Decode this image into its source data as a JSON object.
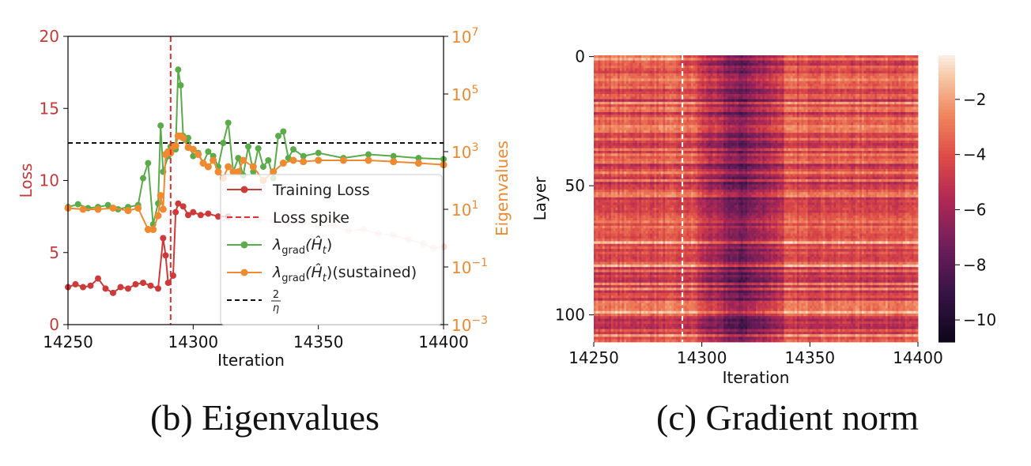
{
  "captions": {
    "left": "(b) Eigenvalues",
    "right": "(c) Gradient norm"
  },
  "colors": {
    "loss": "#cc3a3a",
    "spike": "#e03030",
    "grad": "#5aab4a",
    "sustained": "#f08a30",
    "eta_line": "#111111",
    "eig_axis": "#f08a30",
    "loss_axis": "#c83a3a"
  },
  "chart_data": [
    {
      "type": "line",
      "title": "",
      "xlabel": "Iteration",
      "ylabel_left": "Loss",
      "ylabel_right": "Eigenvalues",
      "xlim": [
        14250,
        14400
      ],
      "ylim_left": [
        0,
        20
      ],
      "ylim_right": [
        0.001,
        10000000
      ],
      "right_scale": "log",
      "xticks": [
        "14250",
        "14300",
        "14350",
        "14400"
      ],
      "yticks_left": [
        "0",
        "5",
        "10",
        "15",
        "20"
      ],
      "yticks_right": [
        {
          "base": "10",
          "exp": "−3",
          "value": 0.001
        },
        {
          "base": "10",
          "exp": "−1",
          "value": 0.1
        },
        {
          "base": "10",
          "exp": "1",
          "value": 10
        },
        {
          "base": "10",
          "exp": "3",
          "value": 1000
        },
        {
          "base": "10",
          "exp": "5",
          "value": 100000
        },
        {
          "base": "10",
          "exp": "7",
          "value": 10000000
        }
      ],
      "spike_x": 14291,
      "eta_threshold": 2000,
      "legend": {
        "position": "lower-right",
        "entries": [
          {
            "key": "loss",
            "text": "Training Loss"
          },
          {
            "key": "spike",
            "text": "Loss spike"
          },
          {
            "key": "grad",
            "lambda": "λ",
            "sub": "grad",
            "arg": "(Ĥ",
            "argsub": "t",
            "close": ")",
            "suffix": ""
          },
          {
            "key": "sustained",
            "lambda": "λ",
            "sub": "grad",
            "arg": "(Ĥ",
            "argsub": "t",
            "close": ")",
            "suffix": "(sustained)"
          },
          {
            "key": "eta",
            "num": "2",
            "den": "η"
          }
        ]
      },
      "series": [
        {
          "key": "loss",
          "x": [
            14250,
            14253,
            14256,
            14259,
            14262,
            14265,
            14268,
            14271,
            14274,
            14277,
            14280,
            14283,
            14286,
            14288,
            14289,
            14290,
            14292,
            14293,
            14294,
            14296,
            14298,
            14300,
            14303,
            14306,
            14310,
            14314
          ],
          "y": [
            2.6,
            2.8,
            2.6,
            2.7,
            3.2,
            2.5,
            2.2,
            2.6,
            2.5,
            2.8,
            2.9,
            2.7,
            2.5,
            6.0,
            4.8,
            2.9,
            3.4,
            7.8,
            8.4,
            8.2,
            7.6,
            7.8,
            7.6,
            7.7,
            7.5,
            7.5
          ]
        },
        {
          "key": "loss_faded",
          "x": [
            14314,
            14320,
            14326,
            14332,
            14338,
            14344,
            14350,
            14356,
            14362,
            14368,
            14374,
            14380,
            14386,
            14392,
            14396,
            14400
          ],
          "y": [
            7.5,
            7.4,
            7.3,
            7.2,
            7.0,
            7.1,
            6.8,
            6.9,
            6.5,
            6.6,
            6.3,
            6.2,
            5.9,
            5.6,
            5.3,
            5.4
          ]
        },
        {
          "key": "grad",
          "x": [
            14250,
            14254,
            14258,
            14262,
            14266,
            14270,
            14274,
            14278,
            14280,
            14282,
            14284,
            14286,
            14287,
            14288,
            14290,
            14291,
            14292,
            14293,
            14294,
            14295,
            14296,
            14297,
            14298,
            14300,
            14302,
            14304,
            14306,
            14308,
            14310,
            14312,
            14314,
            14316,
            14318,
            14320,
            14322,
            14324,
            14326,
            14328,
            14330,
            14332,
            14334,
            14336,
            14338,
            14340,
            14344,
            14350,
            14360,
            14370,
            14380,
            14390,
            14400
          ],
          "y": [
            12,
            15,
            11,
            12,
            14,
            10,
            12,
            14,
            120,
            400,
            3,
            16,
            8000,
            200,
            700,
            1500,
            1500,
            1200,
            700000,
            200000,
            3500,
            2500,
            3000,
            700,
            900,
            400,
            1000,
            700,
            300,
            2000,
            10000,
            200,
            600,
            150,
            1500,
            200,
            1300,
            300,
            500,
            120,
            3500,
            5000,
            600,
            1200,
            700,
            900,
            600,
            800,
            700,
            600,
            550
          ]
        },
        {
          "key": "sustained",
          "x": [
            14250,
            14256,
            14262,
            14268,
            14274,
            14278,
            14282,
            14284,
            14286,
            14287,
            14288,
            14289,
            14290,
            14291,
            14292,
            14293,
            14294,
            14295,
            14296,
            14298,
            14300,
            14302,
            14304,
            14306,
            14308,
            14310,
            14312,
            14314,
            14316,
            14318,
            14320,
            14324,
            14328,
            14332,
            14336,
            14340,
            14344,
            14350,
            14360,
            14370,
            14380,
            14390,
            14400
          ],
          "y": [
            11,
            10,
            10,
            11,
            9,
            11,
            2,
            2,
            6,
            30,
            10,
            800,
            1000,
            900,
            1500,
            1600,
            3500,
            3500,
            3000,
            1400,
            1200,
            800,
            400,
            300,
            500,
            200,
            120,
            300,
            200,
            200,
            500,
            300,
            100,
            200,
            400,
            500,
            450,
            500,
            500,
            500,
            450,
            400,
            350
          ]
        }
      ]
    },
    {
      "type": "heatmap",
      "title": "",
      "xlabel": "Iteration",
      "ylabel": "Layer",
      "xlim": [
        14250,
        14400
      ],
      "ylim": [
        0,
        111
      ],
      "xticks": [
        "14250",
        "14300",
        "14350",
        "14400"
      ],
      "yticks": [
        "0",
        "50",
        "100"
      ],
      "colorbar": {
        "ticks": [
          "−2",
          "−4",
          "−6",
          "−8",
          "−10"
        ],
        "range": [
          -10.8,
          -0.4
        ]
      },
      "spike_x": 14291,
      "description_bands": {
        "early_mean": -4.0,
        "active_region": [
          14300,
          14335
        ],
        "active_mean": -7.2,
        "late_mean": -4.2
      }
    }
  ]
}
